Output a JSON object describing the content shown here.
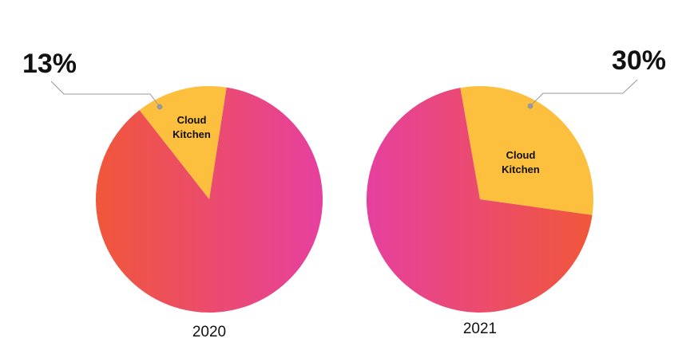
{
  "chart_data": [
    {
      "type": "pie",
      "title": "2020",
      "categories": [
        "Cloud Kitchen",
        null
      ],
      "values": [
        13,
        87
      ],
      "value_labels": [
        "13%",
        null
      ],
      "colors": [
        "#fcbf3e",
        [
          "#f0573a",
          "#e6409f"
        ]
      ]
    },
    {
      "type": "pie",
      "title": "2021",
      "categories": [
        "Cloud Kitchen",
        null
      ],
      "values": [
        30,
        70
      ],
      "value_labels": [
        "30%",
        null
      ],
      "colors": [
        "#fcbf3e",
        [
          "#e6409f",
          "#f0573a"
        ]
      ]
    }
  ]
}
